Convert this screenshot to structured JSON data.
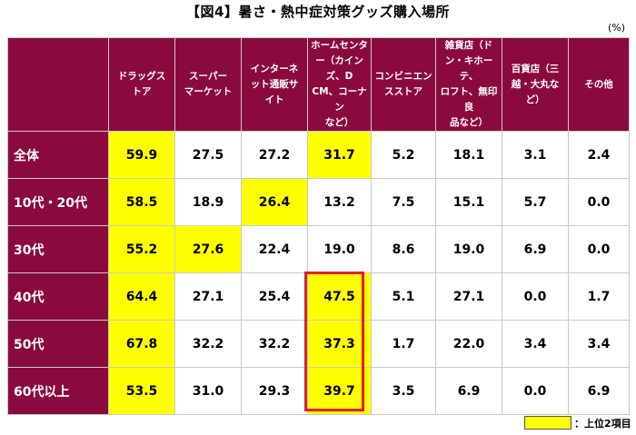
{
  "title": "【図4】暑さ・熱中症対策グッズ購入場所",
  "unit": "(%)",
  "legend_label": "：上位2項目",
  "colors": {
    "header_bg": "#8b0a3d",
    "highlight": "#ffff00",
    "emphasis_border": "#e31e24"
  },
  "chart_data": {
    "type": "table",
    "columns": [
      "ドラッグストア",
      "スーパーマーケット",
      "インターネット通販サイト",
      "ホームセンター（カインズ、DCM、コーナンなど）",
      "コンビニエンスストア",
      "雑貨店（ドン・キホーテ、ロフト、無印良品など）",
      "百貨店（三越・大丸など）",
      "その他"
    ],
    "rows": [
      {
        "label": "全体",
        "values": [
          "59.9",
          "27.5",
          "27.2",
          "31.7",
          "5.2",
          "18.1",
          "3.1",
          "2.4"
        ],
        "top2": [
          0,
          3
        ]
      },
      {
        "label": "10代・20代",
        "values": [
          "58.5",
          "18.9",
          "26.4",
          "13.2",
          "7.5",
          "15.1",
          "5.7",
          "0.0"
        ],
        "top2": [
          0,
          2
        ]
      },
      {
        "label": "30代",
        "values": [
          "55.2",
          "27.6",
          "22.4",
          "19.0",
          "8.6",
          "19.0",
          "6.9",
          "0.0"
        ],
        "top2": [
          0,
          1
        ]
      },
      {
        "label": "40代",
        "values": [
          "64.4",
          "27.1",
          "25.4",
          "47.5",
          "5.1",
          "27.1",
          "0.0",
          "1.7"
        ],
        "top2": [
          0,
          3
        ]
      },
      {
        "label": "50代",
        "values": [
          "67.8",
          "32.2",
          "32.2",
          "37.3",
          "1.7",
          "22.0",
          "3.4",
          "3.4"
        ],
        "top2": [
          0,
          3
        ]
      },
      {
        "label": "60代以上",
        "values": [
          "53.5",
          "31.0",
          "29.3",
          "39.7",
          "3.5",
          "6.9",
          "0.0",
          "6.9"
        ],
        "top2": [
          0,
          3
        ]
      }
    ],
    "emphasized": {
      "column": 3,
      "rows": [
        3,
        4,
        5
      ]
    }
  }
}
